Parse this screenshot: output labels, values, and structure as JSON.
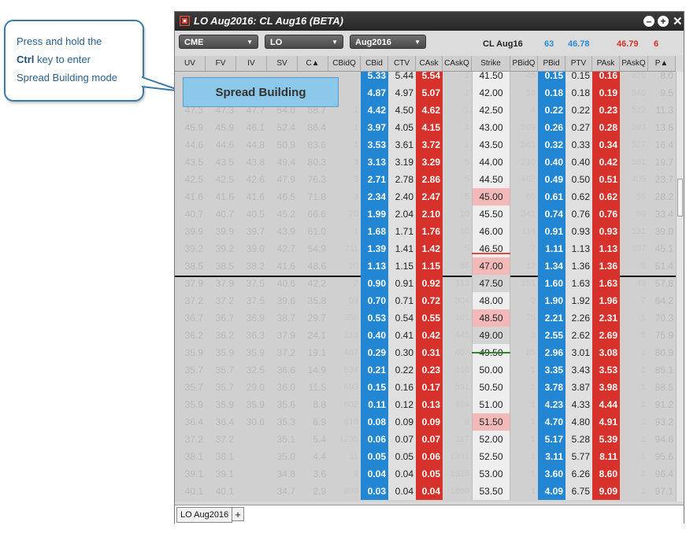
{
  "callout": {
    "line1": "Press and hold the",
    "key": "Ctrl",
    "line2_rest": " key to enter",
    "line3": "Spread Building mode"
  },
  "window": {
    "title": "LO Aug2016: CL Aug16 (BETA)",
    "minimize_icon": "minus-icon",
    "add_icon": "plus-icon",
    "close_icon": "close-icon"
  },
  "toolbar": {
    "exchange": "CME",
    "product": "LO",
    "expiry": "Aug2016",
    "underlying_label": "CL Aug16",
    "underlying_bid_qty": "63",
    "underlying_bid": "46.78",
    "underlying_ask": "46.79",
    "underlying_ask_qty": "6"
  },
  "columns": [
    "UV",
    "FV",
    "IV",
    "SV",
    "C▲",
    "CBidQ",
    "CBid",
    "CTV",
    "CAsk",
    "CAskQ",
    "Strike",
    "PBidQ",
    "PBid",
    "PTV",
    "PAsk",
    "PAskQ",
    "P▲"
  ],
  "spread_button": "Spread Building",
  "rows": [
    [
      "",
      "",
      "",
      "",
      "",
      "",
      "5.33",
      "5.44",
      "5.54",
      "1",
      "41.50",
      "48",
      "0.15",
      "0.15",
      "0.16",
      "628",
      "8.0"
    ],
    [
      "",
      "",
      "",
      "",
      "",
      "",
      "4.87",
      "4.97",
      "5.07",
      "1",
      "42.00",
      "13",
      "0.18",
      "0.18",
      "0.19",
      "540",
      "9.5"
    ],
    [
      "47.3",
      "47.3",
      "47.7",
      "54.0",
      "88.7",
      "1",
      "4.42",
      "4.50",
      "4.62",
      "1",
      "42.50",
      "4",
      "0.22",
      "0.22",
      "0.23",
      "522",
      "11.3"
    ],
    [
      "45.9",
      "45.9",
      "46.1",
      "52.4",
      "86.4",
      "1",
      "3.97",
      "4.05",
      "4.15",
      "1",
      "43.00",
      "569",
      "0.26",
      "0.27",
      "0.28",
      "593",
      "13.6"
    ],
    [
      "44.6",
      "44.6",
      "44.8",
      "50.9",
      "83.6",
      "1",
      "3.53",
      "3.61",
      "3.72",
      "1",
      "43.50",
      "561",
      "0.32",
      "0.33",
      "0.34",
      "527",
      "16.4"
    ],
    [
      "43.5",
      "43.5",
      "43.8",
      "49.4",
      "80.3",
      "3",
      "3.13",
      "3.19",
      "3.29",
      "5",
      "44.00",
      "210",
      "0.40",
      "0.40",
      "0.42",
      "581",
      "19.7"
    ],
    [
      "42.5",
      "42.5",
      "42.6",
      "47.9",
      "76.3",
      "3",
      "2.71",
      "2.78",
      "2.86",
      "5",
      "44.50",
      "402",
      "0.49",
      "0.50",
      "0.51",
      "405",
      "23.7"
    ],
    [
      "41.6",
      "41.6",
      "41.6",
      "46.5",
      "71.8",
      "3",
      "2.34",
      "2.40",
      "2.47",
      "5",
      "45.00",
      "65",
      "0.61",
      "0.62",
      "0.62",
      "59",
      "28.2"
    ],
    [
      "40.7",
      "40.7",
      "40.5",
      "45.2",
      "66.6",
      "70",
      "1.99",
      "2.04",
      "2.10",
      "10",
      "45.50",
      "341",
      "0.74",
      "0.76",
      "0.76",
      "69",
      "33.4"
    ],
    [
      "39.9",
      "39.9",
      "39.7",
      "43.9",
      "61.0",
      "1",
      "1.68",
      "1.71",
      "1.76",
      "10",
      "46.00",
      "114",
      "0.91",
      "0.93",
      "0.93",
      "131",
      "39.0"
    ],
    [
      "39.2",
      "39.2",
      "39.0",
      "42.7",
      "54.9",
      "211",
      "1.39",
      "1.41",
      "1.42",
      "5",
      "46.50",
      "7",
      "1.11",
      "1.13",
      "1.13",
      "107",
      "45.1"
    ],
    [
      "38.5",
      "38.5",
      "38.2",
      "41.6",
      "48.6",
      "20",
      "1.13",
      "1.15",
      "1.15",
      "86",
      "47.00",
      "12",
      "1.34",
      "1.36",
      "1.36",
      "9",
      "51.4"
    ],
    [
      "37.9",
      "37.9",
      "37.5",
      "40.6",
      "42.2",
      "2",
      "0.90",
      "0.91",
      "0.92",
      "313",
      "47.50",
      "151",
      "1.60",
      "1.63",
      "1.63",
      "49",
      "57.8"
    ],
    [
      "37.2",
      "37.2",
      "37.5",
      "39.6",
      "35.8",
      "59",
      "0.70",
      "0.71",
      "0.72",
      "304",
      "48.00",
      "2",
      "1.90",
      "1.92",
      "1.96",
      "7",
      "64.2"
    ],
    [
      "36.7",
      "36.7",
      "36.9",
      "38.7",
      "29.7",
      "356",
      "0.53",
      "0.54",
      "0.55",
      "101",
      "48.50",
      "75",
      "2.21",
      "2.26",
      "2.31",
      "1",
      "70.3"
    ],
    [
      "36.2",
      "36.2",
      "36.3",
      "37.9",
      "24.1",
      "113",
      "0.40",
      "0.41",
      "0.42",
      "445",
      "49.00",
      "3",
      "2.55",
      "2.62",
      "2.69",
      "5",
      "75.9"
    ],
    [
      "35.9",
      "35.9",
      "35.9",
      "37.2",
      "19.1",
      "467",
      "0.29",
      "0.30",
      "0.31",
      "407",
      "49.50",
      "85",
      "2.96",
      "3.01",
      "3.08",
      "1",
      "80.9"
    ],
    [
      "35.7",
      "35.7",
      "32.5",
      "36.6",
      "14.9",
      "534",
      "0.21",
      "0.22",
      "0.23",
      "510",
      "50.00",
      "1",
      "3.35",
      "3.43",
      "3.53",
      "1",
      "85.1"
    ],
    [
      "35.7",
      "35.7",
      "29.0",
      "36.0",
      "11.5",
      "693",
      "0.15",
      "0.16",
      "0.17",
      "591",
      "50.50",
      "1",
      "3.78",
      "3.87",
      "3.98",
      "1",
      "88.5"
    ],
    [
      "35.9",
      "35.9",
      "35.9",
      "35.6",
      "8.8",
      "602",
      "0.11",
      "0.12",
      "0.13",
      "924",
      "51.00",
      "1",
      "4.23",
      "4.33",
      "4.44",
      "1",
      "91.2"
    ],
    [
      "36.4",
      "36.4",
      "30.6",
      "35.3",
      "6.9",
      "616",
      "0.08",
      "0.09",
      "0.09",
      "8",
      "51.50",
      "1",
      "4.70",
      "4.80",
      "4.91",
      "1",
      "93.2"
    ],
    [
      "37.2",
      "37.2",
      "",
      "35.1",
      "5.4",
      "1235",
      "0.06",
      "0.07",
      "0.07",
      "117",
      "52.00",
      "1",
      "5.17",
      "5.28",
      "5.39",
      "1",
      "94.6"
    ],
    [
      "38.1",
      "38.1",
      "",
      "35.0",
      "4.4",
      "11",
      "0.05",
      "0.05",
      "0.06",
      "1391",
      "52.50",
      "1",
      "3.11",
      "5.77",
      "8.11",
      "1",
      "95.6"
    ],
    [
      "39.1",
      "39.1",
      "",
      "34.8",
      "3.6",
      "9",
      "0.04",
      "0.04",
      "0.05",
      "1926",
      "53.00",
      "1",
      "3.60",
      "6.26",
      "8.60",
      "1",
      "96.4"
    ],
    [
      "40.1",
      "40.1",
      "",
      "34.7",
      "2.9",
      "899",
      "0.03",
      "0.04",
      "0.04",
      "1869",
      "53.50",
      "1",
      "4.09",
      "6.75",
      "9.09",
      "1",
      "97.1"
    ]
  ],
  "highlighted_strikes": [
    "45.00",
    "47.00",
    "48.50",
    "51.50"
  ],
  "colors": {
    "bid": "#2286d3",
    "ask": "#d6312b",
    "spread_button": "#8cc8ea",
    "callout_border": "#3a7aab"
  },
  "tabs": {
    "active": "LO Aug2016",
    "add_label": "+"
  }
}
